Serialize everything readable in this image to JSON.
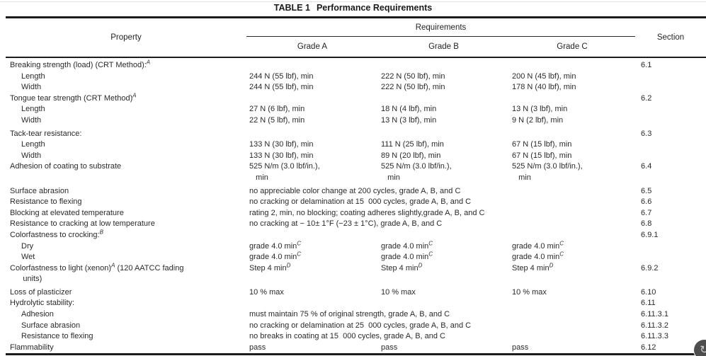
{
  "table": {
    "title_prefix": "TABLE 1",
    "title_text": "Performance Requirements",
    "header": {
      "property": "Property",
      "requirements": "Requirements",
      "grades": [
        "Grade A",
        "Grade B",
        "Grade C"
      ],
      "section": "Section"
    },
    "rows": [
      {
        "indent": 0,
        "prop": "Breaking strength (load) (CRT Method):^{A}",
        "mode": "empty",
        "section": "6.1"
      },
      {
        "indent": 1,
        "prop": "Length",
        "mode": "grade",
        "a": "244 N (55 lbf), min",
        "b": "222 N (50 lbf), min",
        "c": "200 N (45 lbf), min",
        "section": ""
      },
      {
        "indent": 1,
        "prop": "Width",
        "mode": "grade",
        "a": "244 N (55 lbf), min",
        "b": "222 N (50 lbf), min",
        "c": "178 N (40 lbf), min",
        "section": ""
      },
      {
        "indent": 0,
        "prop": "Tongue tear strength (CRT Method)^{A}",
        "mode": "empty",
        "section": "6.2"
      },
      {
        "indent": 1,
        "prop": "Length",
        "mode": "grade",
        "a": "27 N (6 lbf), min",
        "b": "18 N (4 lbf), min",
        "c": "13 N (3 lbf), min",
        "section": ""
      },
      {
        "indent": 1,
        "prop": "Width",
        "mode": "grade",
        "a": "22 N (5 lbf), min",
        "b": "13 N (3 lbf), min",
        "c": "9 N (2 lbf), min",
        "section": ""
      },
      {
        "indent": 0,
        "prop": "Tack-tear resistance:",
        "mode": "empty",
        "section": "6.3"
      },
      {
        "indent": 1,
        "prop": "Length",
        "mode": "grade",
        "a": "133 N (30 lbf), min",
        "b": "111 N (25 lbf), min",
        "c": "67 N (15 lbf), min",
        "section": ""
      },
      {
        "indent": 1,
        "prop": "Width",
        "mode": "grade",
        "a": "133 N (30 lbf), min",
        "b": "89 N (20 lbf), min",
        "c": "67 N (15 lbf), min",
        "section": ""
      },
      {
        "indent": 0,
        "prop": "Adhesion of coating to substrate",
        "mode": "grade",
        "a": "525 N/m (3.0 lbf/in.),\n   min",
        "b": "525 N/m (3.0 lbf/in.),\n   min",
        "c": "525 N/m (3.0 lbf/in.),\n   min",
        "section": "6.4"
      },
      {
        "indent": 0,
        "prop": "Surface abrasion",
        "mode": "span",
        "text": "no appreciable color change at 200 cycles, grade A, B, and C",
        "section": "6.5"
      },
      {
        "indent": 0,
        "prop": "Resistance to flexing",
        "mode": "span",
        "text": "no cracking or delamination at 15  000 cycles, grade A, B, and C",
        "section": "6.6"
      },
      {
        "indent": 0,
        "prop": "Blocking at elevated temperature",
        "mode": "span",
        "text": "rating 2, min, no blocking; coating adheres slightly,grade A, B, and C",
        "section": "6.7"
      },
      {
        "indent": 0,
        "prop": "Resistance to cracking at low temperature",
        "mode": "span",
        "text": "no cracking at − 10± 1°F (−23 ± 1°C), grade A, B, and C",
        "section": "6.8"
      },
      {
        "indent": 0,
        "prop": "Colorfastness to crocking:^{B}",
        "mode": "empty",
        "section": "6.9.1"
      },
      {
        "indent": 1,
        "prop": "Dry",
        "mode": "grade",
        "a": "grade 4.0 min^{C}",
        "b": "grade 4.0 min^{C}",
        "c": "grade 4.0 min^{C}",
        "section": ""
      },
      {
        "indent": 1,
        "prop": "Wet",
        "mode": "grade",
        "a": "grade 4.0 min^{C}",
        "b": "grade 4.0 min^{C}",
        "c": "grade 4.0 min^{C}",
        "section": ""
      },
      {
        "indent": 0,
        "prop": "Colorfastness to light (xenon)^{A} (120 AATCC fading\n      units)",
        "mode": "grade",
        "a": "Step 4 min^{D}",
        "b": "Step 4 min^{D}",
        "c": "Step 4 min^{D}",
        "section": "6.9.2"
      },
      {
        "indent": 0,
        "prop": "Loss of plasticizer",
        "mode": "grade",
        "a": "10 % max",
        "b": "10 % max",
        "c": "10 % max",
        "section": "6.10"
      },
      {
        "indent": 0,
        "prop": "Hydrolytic stability:",
        "mode": "empty",
        "section": "6.11"
      },
      {
        "indent": 1,
        "prop": "Adhesion",
        "mode": "span",
        "text": "must maintain 75 % of original strength, grade A, B, and C",
        "section": "6.11.3.1"
      },
      {
        "indent": 1,
        "prop": "Surface abrasion",
        "mode": "span",
        "text": "no cracking or delamination at 25  000 cycles, grade A, B, and C",
        "section": "6.11.3.2"
      },
      {
        "indent": 1,
        "prop": "Resistance to flexing",
        "mode": "span",
        "text": "no breaks in coating at 15  000 cycles, grade A, B, and C",
        "section": "6.11.3.3"
      },
      {
        "indent": 0,
        "prop": "Flammability",
        "mode": "grade",
        "a": "pass",
        "b": "pass",
        "c": "pass",
        "section": "6.12"
      }
    ]
  },
  "corner_icon": {
    "name": "rotate-page-icon",
    "glyph": "↻",
    "background": "#4e4e4e"
  },
  "colors": {
    "rule": "#1c1c1c",
    "text": "#2a2a2a",
    "background": "#ffffff"
  }
}
